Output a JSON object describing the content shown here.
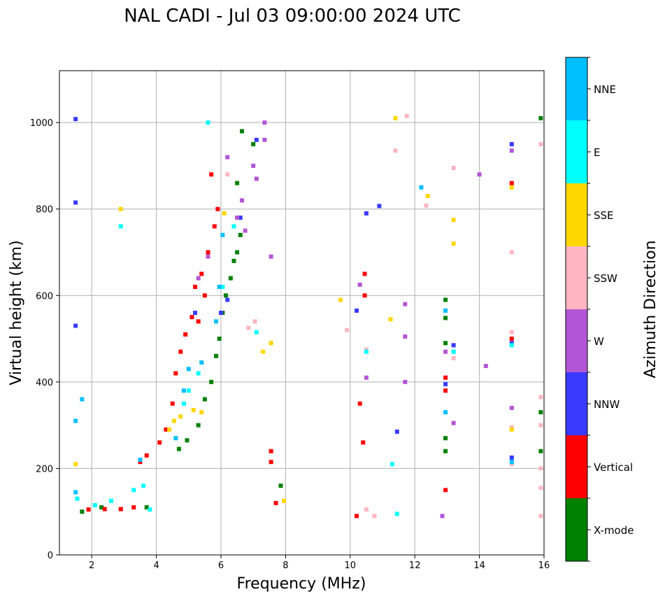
{
  "chart_data": {
    "type": "scatter",
    "title": "NAL CADI - Jul 03 09:00:00 2024 UTC",
    "xlabel": "Frequency (MHz)",
    "ylabel": "Virtual height (km)",
    "xlim": [
      1.0,
      16.0
    ],
    "ylim": [
      0,
      1120
    ],
    "xticks": [
      2,
      4,
      6,
      8,
      10,
      12,
      14,
      16
    ],
    "yticks": [
      0,
      200,
      400,
      600,
      800,
      1000
    ],
    "grid": true,
    "colorbar": {
      "label": "Azimuth Direction",
      "categories": [
        {
          "name": "X-mode",
          "color": "#008000"
        },
        {
          "name": "Vertical",
          "color": "#ff0000"
        },
        {
          "name": "NNW",
          "color": "#3a3aff"
        },
        {
          "name": "W",
          "color": "#b356d6"
        },
        {
          "name": "SSW",
          "color": "#ffb6c1"
        },
        {
          "name": "SSE",
          "color": "#ffd700"
        },
        {
          "name": "E",
          "color": "#00ffff"
        },
        {
          "name": "NNE",
          "color": "#00bfff"
        }
      ]
    },
    "series": [
      {
        "name": "X-mode",
        "points": [
          [
            1.7,
            100
          ],
          [
            2.3,
            110
          ],
          [
            3.7,
            110
          ],
          [
            4.7,
            245
          ],
          [
            4.95,
            265
          ],
          [
            5.3,
            300
          ],
          [
            5.5,
            360
          ],
          [
            5.7,
            400
          ],
          [
            5.85,
            460
          ],
          [
            5.95,
            500
          ],
          [
            6.05,
            560
          ],
          [
            6.15,
            600
          ],
          [
            6.3,
            640
          ],
          [
            6.4,
            680
          ],
          [
            6.5,
            700
          ],
          [
            6.6,
            740
          ],
          [
            6.5,
            860
          ],
          [
            6.65,
            980
          ],
          [
            7.0,
            950
          ],
          [
            7.85,
            160
          ],
          [
            12.95,
            590
          ],
          [
            12.95,
            548
          ],
          [
            12.95,
            490
          ],
          [
            12.95,
            270
          ],
          [
            12.95,
            240
          ],
          [
            15.9,
            1010
          ],
          [
            15.9,
            330
          ],
          [
            15.9,
            240
          ]
        ]
      },
      {
        "name": "Vertical",
        "points": [
          [
            1.9,
            105
          ],
          [
            2.4,
            106
          ],
          [
            2.9,
            106
          ],
          [
            3.3,
            110
          ],
          [
            3.5,
            215
          ],
          [
            3.7,
            230
          ],
          [
            4.1,
            260
          ],
          [
            4.3,
            290
          ],
          [
            4.5,
            350
          ],
          [
            4.6,
            420
          ],
          [
            4.75,
            470
          ],
          [
            4.9,
            510
          ],
          [
            5.1,
            550
          ],
          [
            5.3,
            540
          ],
          [
            5.5,
            600
          ],
          [
            5.2,
            620
          ],
          [
            5.4,
            650
          ],
          [
            5.6,
            700
          ],
          [
            5.8,
            760
          ],
          [
            5.9,
            800
          ],
          [
            5.7,
            880
          ],
          [
            5.6,
            1000
          ],
          [
            7.55,
            215
          ],
          [
            7.55,
            240
          ],
          [
            7.7,
            120
          ],
          [
            10.2,
            90
          ],
          [
            10.3,
            350
          ],
          [
            10.4,
            260
          ],
          [
            10.45,
            600
          ],
          [
            10.45,
            650
          ],
          [
            12.95,
            150
          ],
          [
            12.95,
            380
          ],
          [
            12.95,
            410
          ],
          [
            15.0,
            500
          ],
          [
            15.0,
            860
          ]
        ]
      },
      {
        "name": "NNW",
        "points": [
          [
            1.5,
            530
          ],
          [
            1.5,
            815
          ],
          [
            1.5,
            1008
          ],
          [
            5.2,
            560
          ],
          [
            6.0,
            560
          ],
          [
            6.2,
            590
          ],
          [
            6.6,
            780
          ],
          [
            7.1,
            960
          ],
          [
            10.2,
            565
          ],
          [
            10.5,
            790
          ],
          [
            10.9,
            807
          ],
          [
            11.45,
            285
          ],
          [
            12.95,
            395
          ],
          [
            13.2,
            485
          ],
          [
            15.0,
            950
          ],
          [
            15.0,
            225
          ],
          [
            15.0,
            490
          ]
        ]
      },
      {
        "name": "W",
        "points": [
          [
            5.3,
            640
          ],
          [
            5.6,
            690
          ],
          [
            6.2,
            920
          ],
          [
            6.5,
            780
          ],
          [
            6.65,
            820
          ],
          [
            6.75,
            750
          ],
          [
            7.0,
            900
          ],
          [
            7.1,
            870
          ],
          [
            7.35,
            960
          ],
          [
            7.35,
            1000
          ],
          [
            7.55,
            690
          ],
          [
            10.5,
            410
          ],
          [
            10.3,
            625
          ],
          [
            11.7,
            400
          ],
          [
            11.7,
            505
          ],
          [
            11.7,
            580
          ],
          [
            12.85,
            90
          ],
          [
            12.95,
            470
          ],
          [
            13.2,
            305
          ],
          [
            14.0,
            880
          ],
          [
            14.2,
            437
          ],
          [
            15.0,
            340
          ],
          [
            15.0,
            935
          ]
        ]
      },
      {
        "name": "SSW",
        "points": [
          [
            6.2,
            880
          ],
          [
            6.85,
            525
          ],
          [
            7.05,
            540
          ],
          [
            9.9,
            520
          ],
          [
            10.5,
            475
          ],
          [
            10.5,
            105
          ],
          [
            10.75,
            90
          ],
          [
            11.4,
            935
          ],
          [
            11.75,
            1015
          ],
          [
            12.35,
            808
          ],
          [
            13.2,
            455
          ],
          [
            13.2,
            895
          ],
          [
            15.0,
            700
          ],
          [
            15.0,
            515
          ],
          [
            15.0,
            210
          ],
          [
            15.0,
            295
          ],
          [
            15.9,
            950
          ],
          [
            15.9,
            365
          ],
          [
            15.9,
            300
          ],
          [
            15.9,
            200
          ],
          [
            15.9,
            155
          ],
          [
            15.9,
            90
          ]
        ]
      },
      {
        "name": "SSE",
        "points": [
          [
            1.5,
            210
          ],
          [
            2.9,
            800
          ],
          [
            4.4,
            290
          ],
          [
            4.55,
            310
          ],
          [
            4.75,
            320
          ],
          [
            5.15,
            335
          ],
          [
            5.4,
            330
          ],
          [
            6.1,
            790
          ],
          [
            7.3,
            470
          ],
          [
            7.55,
            490
          ],
          [
            7.95,
            125
          ],
          [
            9.7,
            590
          ],
          [
            11.25,
            545
          ],
          [
            11.4,
            1010
          ],
          [
            12.4,
            830
          ],
          [
            13.2,
            720
          ],
          [
            13.2,
            775
          ],
          [
            15.0,
            290
          ],
          [
            15.0,
            850
          ]
        ]
      },
      {
        "name": "E",
        "points": [
          [
            1.55,
            130
          ],
          [
            2.1,
            115
          ],
          [
            2.6,
            125
          ],
          [
            2.9,
            760
          ],
          [
            3.3,
            150
          ],
          [
            3.6,
            160
          ],
          [
            3.8,
            105
          ],
          [
            4.85,
            350
          ],
          [
            5.0,
            380
          ],
          [
            5.3,
            420
          ],
          [
            5.6,
            1000
          ],
          [
            6.05,
            620
          ],
          [
            6.4,
            760
          ],
          [
            7.1,
            515
          ],
          [
            10.5,
            470
          ],
          [
            11.3,
            210
          ],
          [
            11.45,
            95
          ],
          [
            13.2,
            470
          ],
          [
            15.0,
            485
          ]
        ]
      },
      {
        "name": "NNE",
        "points": [
          [
            1.5,
            145
          ],
          [
            1.5,
            310
          ],
          [
            1.7,
            360
          ],
          [
            3.5,
            220
          ],
          [
            4.6,
            270
          ],
          [
            4.85,
            380
          ],
          [
            5.0,
            430
          ],
          [
            5.4,
            445
          ],
          [
            5.85,
            540
          ],
          [
            5.95,
            620
          ],
          [
            6.05,
            740
          ],
          [
            12.2,
            850
          ],
          [
            12.95,
            565
          ],
          [
            12.95,
            330
          ],
          [
            15.0,
            215
          ]
        ]
      }
    ]
  }
}
